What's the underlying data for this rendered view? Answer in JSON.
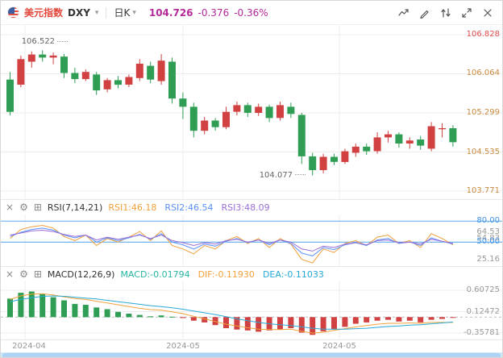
{
  "header": {
    "instrument_name": "美元指数",
    "symbol": "DXY",
    "period_label": "日K",
    "price": "104.726",
    "change": "-0.376",
    "change_pct": "-0.36%",
    "accent_colors": {
      "instrument": "#e2483d",
      "price_down": "#b42a9a"
    }
  },
  "glyphs": {
    "caret": "▾",
    "close": "×",
    "gear": "⚙",
    "add": "⊞"
  },
  "scrollbar": {
    "track": "#cde5f8",
    "thumb": "#aed3f2"
  },
  "chart_data": {
    "type": "candlestick",
    "x_labels": [
      "2024-04",
      "2024-05",
      "2024-05"
    ],
    "candlestick": {
      "up_color": "#d14141",
      "down_color": "#2f9e54",
      "grid_color": "#ededed",
      "axis_labels": [
        {
          "text": "106.828",
          "value": 106.828,
          "color": "#e34d4d"
        },
        {
          "text": "106.064",
          "value": 106.064,
          "color": "#c98a3f"
        },
        {
          "text": "105.299",
          "value": 105.299,
          "color": "#c98a3f"
        },
        {
          "text": "104.535",
          "value": 104.535,
          "color": "#c98a3f"
        },
        {
          "text": "103.771",
          "value": 103.771,
          "color": "#c98a3f"
        }
      ],
      "high_annotation": {
        "text": "106.522",
        "value": 106.522,
        "index": 3
      },
      "low_annotation": {
        "text": "104.077",
        "value": 104.077,
        "index": 28
      },
      "candles": [
        [
          105.95,
          106.1,
          105.25,
          105.32
        ],
        [
          105.85,
          106.42,
          105.8,
          106.35
        ],
        [
          106.3,
          106.5,
          106.18,
          106.44
        ],
        [
          106.44,
          106.522,
          106.3,
          106.38
        ],
        [
          106.38,
          106.48,
          106.25,
          106.42
        ],
        [
          106.4,
          106.45,
          105.98,
          106.08
        ],
        [
          106.08,
          106.18,
          105.88,
          105.96
        ],
        [
          105.96,
          106.15,
          105.92,
          106.1
        ],
        [
          106.05,
          106.1,
          105.65,
          105.74
        ],
        [
          105.76,
          105.98,
          105.7,
          105.94
        ],
        [
          105.94,
          106.02,
          105.78,
          105.85
        ],
        [
          105.85,
          106.05,
          105.8,
          106.0
        ],
        [
          105.98,
          106.35,
          105.92,
          106.26
        ],
        [
          106.22,
          106.3,
          105.88,
          105.95
        ],
        [
          105.92,
          106.45,
          105.85,
          106.32
        ],
        [
          106.3,
          106.38,
          105.48,
          105.58
        ],
        [
          105.58,
          105.7,
          105.18,
          105.42
        ],
        [
          105.42,
          105.5,
          104.82,
          104.95
        ],
        [
          104.95,
          105.22,
          104.88,
          105.15
        ],
        [
          105.15,
          105.2,
          104.95,
          105.02
        ],
        [
          105.02,
          105.42,
          104.98,
          105.32
        ],
        [
          105.32,
          105.52,
          105.25,
          105.45
        ],
        [
          105.45,
          105.5,
          105.22,
          105.3
        ],
        [
          105.3,
          105.48,
          105.24,
          105.42
        ],
        [
          105.42,
          105.46,
          105.12,
          105.2
        ],
        [
          105.2,
          105.52,
          105.15,
          105.45
        ],
        [
          105.42,
          105.5,
          105.2,
          105.28
        ],
        [
          105.26,
          105.3,
          104.3,
          104.45
        ],
        [
          104.45,
          104.52,
          104.077,
          104.18
        ],
        [
          104.18,
          104.5,
          104.12,
          104.44
        ],
        [
          104.44,
          104.5,
          104.28,
          104.34
        ],
        [
          104.34,
          104.6,
          104.3,
          104.55
        ],
        [
          104.52,
          104.7,
          104.44,
          104.64
        ],
        [
          104.64,
          104.7,
          104.48,
          104.55
        ],
        [
          104.55,
          104.92,
          104.5,
          104.82
        ],
        [
          104.82,
          104.95,
          104.72,
          104.88
        ],
        [
          104.88,
          104.92,
          104.62,
          104.7
        ],
        [
          104.7,
          104.82,
          104.6,
          104.76
        ],
        [
          104.78,
          104.85,
          104.58,
          104.66
        ],
        [
          104.6,
          105.12,
          104.55,
          105.04
        ],
        [
          104.98,
          105.1,
          104.82,
          105.0
        ],
        [
          105.0,
          105.06,
          104.64,
          104.726
        ]
      ]
    },
    "rsi": {
      "title": "RSI(7,14,21)",
      "legend": [
        {
          "label": "RSI1:46.18",
          "color": "#ef9f3a"
        },
        {
          "label": "RSI2:46.54",
          "color": "#5b8ff9"
        },
        {
          "label": "RSI3:48.09",
          "color": "#9a6fd8"
        }
      ],
      "axis_labels": [
        {
          "text": "80.00",
          "value": 80,
          "color": "#3f94e8"
        },
        {
          "text": "64.53",
          "value": 64.53,
          "color": "#999999"
        },
        {
          "text": "54.83",
          "value": 54.83,
          "color": "#999999"
        },
        {
          "text": "50.00",
          "value": 50,
          "color": "#3f94e8"
        },
        {
          "text": "25.16",
          "value": 25.16,
          "color": "#999999"
        }
      ],
      "ref_lines": [
        {
          "value": 80,
          "color": "#62aae8"
        },
        {
          "value": 50,
          "color": "#4da0e8"
        }
      ],
      "series": [
        {
          "name": "RSI1",
          "color": "#ef9f3a",
          "values": [
            55,
            68,
            72,
            74,
            70,
            58,
            52,
            60,
            45,
            55,
            50,
            57,
            65,
            52,
            66,
            45,
            40,
            33,
            45,
            40,
            52,
            58,
            48,
            55,
            42,
            55,
            47,
            25,
            20,
            40,
            35,
            48,
            52,
            45,
            57,
            60,
            48,
            52,
            42,
            62,
            55,
            46
          ]
        },
        {
          "name": "RSI2",
          "color": "#5b8ff9",
          "values": [
            58,
            64,
            68,
            70,
            67,
            60,
            56,
            60,
            50,
            56,
            52,
            56,
            61,
            54,
            62,
            50,
            46,
            40,
            47,
            44,
            51,
            55,
            49,
            53,
            46,
            53,
            48,
            34,
            30,
            42,
            39,
            46,
            49,
            45,
            53,
            55,
            48,
            50,
            45,
            56,
            51,
            47
          ]
        },
        {
          "name": "RSI3",
          "color": "#9a6fd8",
          "values": [
            60,
            63,
            66,
            67,
            65,
            61,
            58,
            60,
            53,
            57,
            54,
            57,
            60,
            55,
            60,
            52,
            49,
            45,
            49,
            47,
            52,
            54,
            50,
            53,
            48,
            53,
            50,
            40,
            37,
            44,
            42,
            47,
            49,
            46,
            52,
            53,
            49,
            50,
            47,
            54,
            51,
            48
          ]
        }
      ]
    },
    "macd": {
      "title": "MACD(12,26,9)",
      "legend": [
        {
          "label": "MACD:-0.01794",
          "color": "#2ab5a0"
        },
        {
          "label": "DIF:-0.11930",
          "color": "#f0a23c"
        },
        {
          "label": "DEA:-0.11033",
          "color": "#28a9d6"
        }
      ],
      "axis_labels": [
        {
          "text": "0.60725",
          "value": 0.60725,
          "color": "#999999"
        },
        {
          "text": "0.12472",
          "value": 0.12472,
          "color": "#999999"
        },
        {
          "text": "-0.35781",
          "value": -0.35781,
          "color": "#999999"
        }
      ],
      "pos_color": "#2f9e54",
      "neg_color": "#d14141",
      "histogram": [
        0.42,
        0.55,
        0.58,
        0.52,
        0.45,
        0.38,
        0.3,
        0.28,
        0.22,
        0.18,
        0.12,
        0.08,
        0.05,
        0.02,
        0.04,
        0.01,
        -0.02,
        -0.08,
        -0.12,
        -0.18,
        -0.25,
        -0.28,
        -0.3,
        -0.33,
        -0.3,
        -0.28,
        -0.25,
        -0.35,
        -0.4,
        -0.32,
        -0.28,
        -0.22,
        -0.15,
        -0.12,
        -0.08,
        -0.06,
        -0.1,
        -0.08,
        -0.12,
        -0.06,
        -0.04,
        -0.018
      ],
      "dif": {
        "color": "#f0a23c",
        "values": [
          0.4,
          0.48,
          0.52,
          0.53,
          0.5,
          0.46,
          0.42,
          0.4,
          0.36,
          0.32,
          0.28,
          0.24,
          0.2,
          0.17,
          0.16,
          0.12,
          0.08,
          0.02,
          -0.04,
          -0.1,
          -0.16,
          -0.2,
          -0.24,
          -0.27,
          -0.28,
          -0.28,
          -0.27,
          -0.32,
          -0.36,
          -0.34,
          -0.3,
          -0.26,
          -0.22,
          -0.19,
          -0.16,
          -0.14,
          -0.14,
          -0.13,
          -0.14,
          -0.12,
          -0.12,
          -0.119
        ]
      },
      "dea": {
        "color": "#28a9d6",
        "values": [
          0.35,
          0.4,
          0.44,
          0.47,
          0.48,
          0.47,
          0.45,
          0.43,
          0.41,
          0.38,
          0.35,
          0.32,
          0.29,
          0.26,
          0.24,
          0.21,
          0.18,
          0.14,
          0.1,
          0.06,
          0.01,
          -0.04,
          -0.08,
          -0.12,
          -0.15,
          -0.17,
          -0.19,
          -0.22,
          -0.25,
          -0.27,
          -0.27,
          -0.27,
          -0.26,
          -0.25,
          -0.23,
          -0.21,
          -0.2,
          -0.18,
          -0.17,
          -0.15,
          -0.13,
          -0.11
        ]
      }
    }
  }
}
